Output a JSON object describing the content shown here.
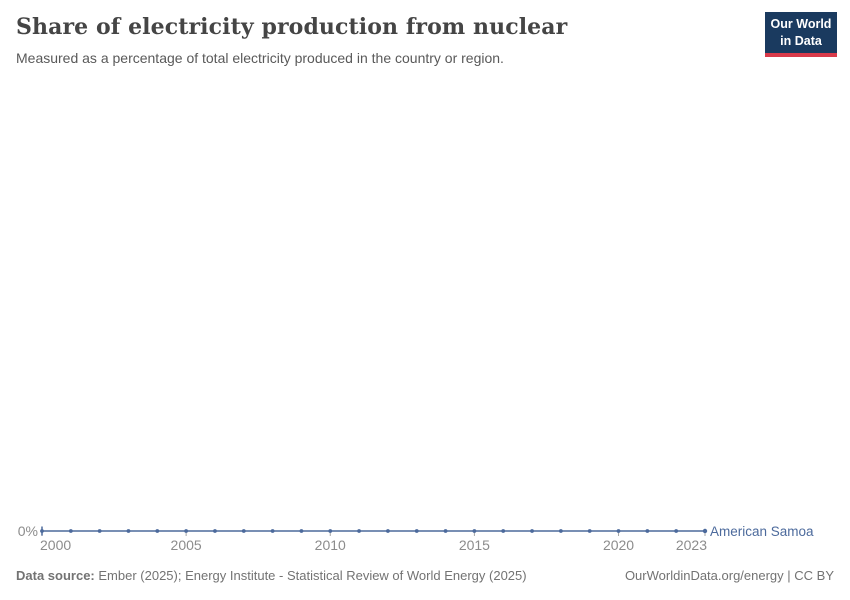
{
  "header": {
    "title": "Share of electricity production from nuclear",
    "subtitle": "Measured as a percentage of total electricity produced in the country or region."
  },
  "logo": {
    "line1": "Our World",
    "line2": "in Data",
    "bg_color": "#1a3a5f",
    "accent_color": "#d93a4a"
  },
  "chart_data": {
    "type": "line",
    "title": "Share of electricity production from nuclear",
    "subtitle": "Measured as a percentage of total electricity produced in the country or region.",
    "xlabel": "",
    "ylabel": "",
    "grid": false,
    "legend_position": "end-of-line-label",
    "x_range": [
      2000,
      2023
    ],
    "x_ticks": [
      2000,
      2005,
      2010,
      2015,
      2020,
      2023
    ],
    "y_axis": {
      "min": 0,
      "tick_labels": [
        "0%"
      ]
    },
    "series": [
      {
        "name": "American Samoa",
        "color": "#4C6A9C",
        "x": [
          2000,
          2001,
          2002,
          2003,
          2004,
          2005,
          2006,
          2007,
          2008,
          2009,
          2010,
          2011,
          2012,
          2013,
          2014,
          2015,
          2016,
          2017,
          2018,
          2019,
          2020,
          2021,
          2022,
          2023
        ],
        "values": [
          0,
          0,
          0,
          0,
          0,
          0,
          0,
          0,
          0,
          0,
          0,
          0,
          0,
          0,
          0,
          0,
          0,
          0,
          0,
          0,
          0,
          0,
          0,
          0
        ]
      }
    ]
  },
  "footer": {
    "datasource_label": "Data source:",
    "datasource_text": "Ember (2025); Energy Institute - Statistical Review of World Energy (2025)",
    "right_text": "OurWorldinData.org/energy | CC BY"
  }
}
